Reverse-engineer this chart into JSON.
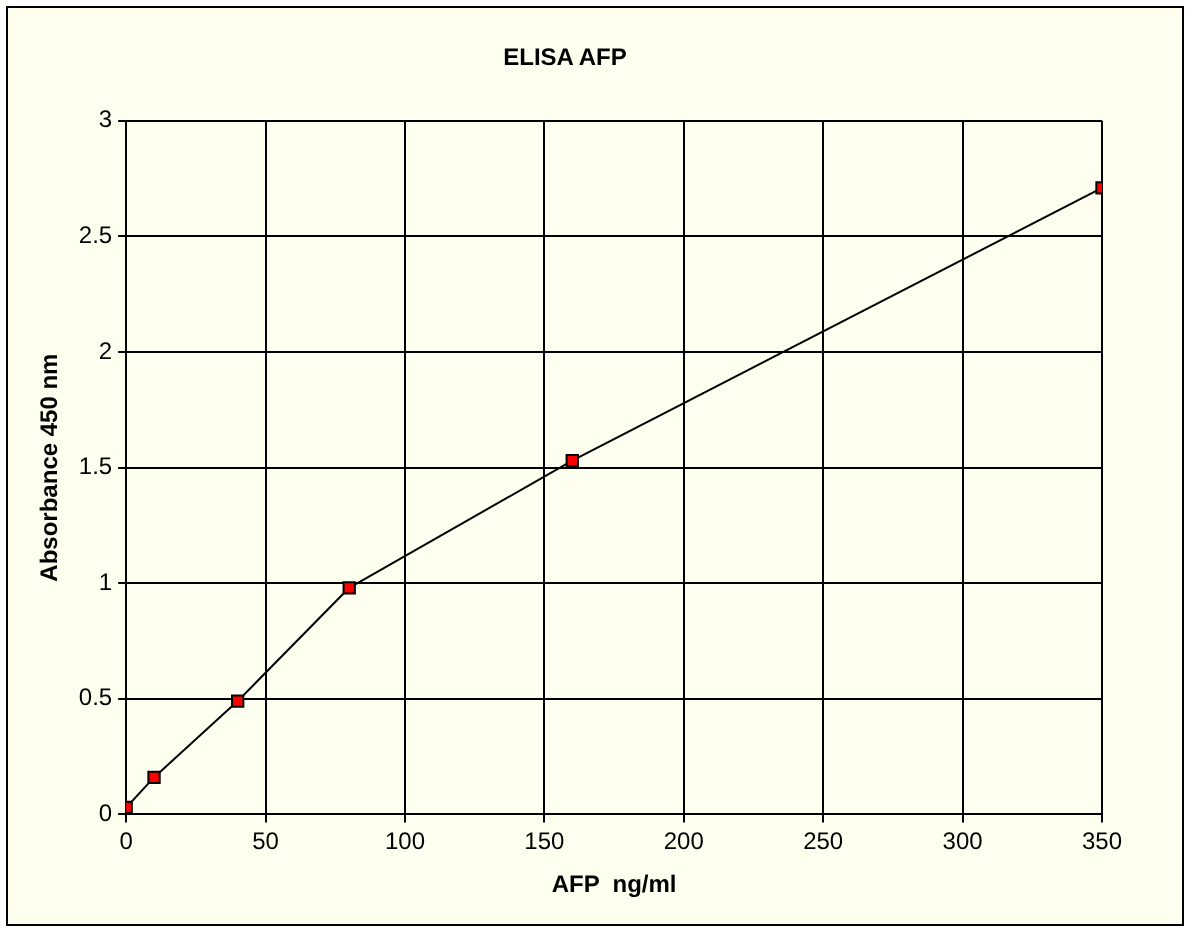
{
  "chart_data": {
    "type": "line",
    "title": "ELISA AFP",
    "xlabel": "AFP  ng/ml",
    "ylabel": "Absorbance 450 nm",
    "x": [
      0,
      10,
      40,
      80,
      160,
      350
    ],
    "series": [
      {
        "color": "#000000",
        "values": [
          0.03,
          0.16,
          0.49,
          0.98,
          1.53,
          2.71
        ]
      }
    ],
    "xlim": [
      0,
      350
    ],
    "xticks": [
      0,
      50,
      100,
      150,
      200,
      250,
      300,
      350
    ],
    "ylim": [
      0,
      3
    ],
    "yticks": [
      0,
      0.5,
      1,
      1.5,
      2,
      2.5,
      3
    ],
    "grid": true,
    "legend": false,
    "marker": "square",
    "line_style": "solid"
  }
}
